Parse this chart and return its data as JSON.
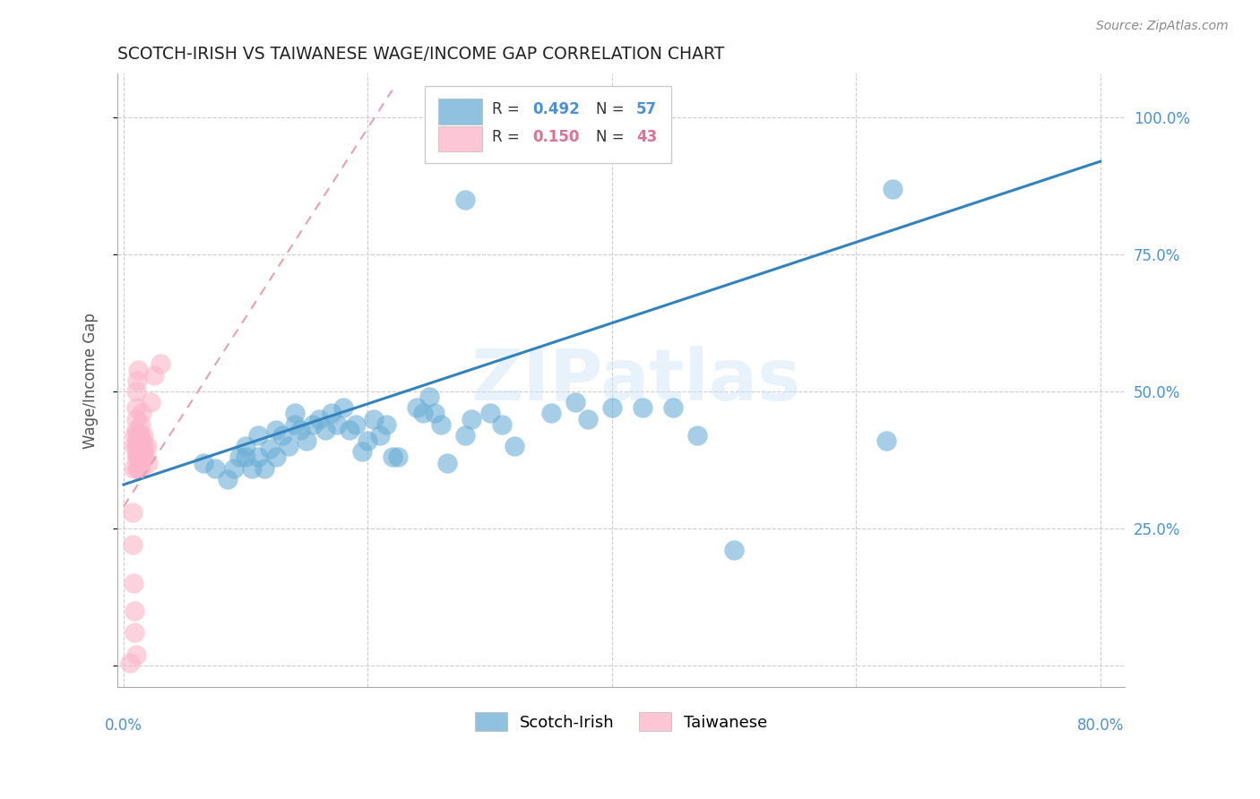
{
  "title": "SCOTCH-IRISH VS TAIWANESE WAGE/INCOME GAP CORRELATION CHART",
  "source": "Source: ZipAtlas.com",
  "ylabel": "Wage/Income Gap",
  "watermark": "ZIPatlas",
  "legend_label_blue": "Scotch-Irish",
  "legend_label_pink": "Taiwanese",
  "blue_R": "0.492",
  "blue_N": "57",
  "pink_R": "0.150",
  "pink_N": "43",
  "blue_color": "#6baed6",
  "pink_color": "#fbb4c9",
  "blue_line_color": "#3182bd",
  "pink_line_color": "#e8a0b0",
  "xlim_min": -0.005,
  "xlim_max": 0.82,
  "ylim_min": -0.04,
  "ylim_max": 1.08,
  "blue_line_x0": 0.0,
  "blue_line_y0": 0.33,
  "blue_line_x1": 0.8,
  "blue_line_y1": 0.92,
  "pink_line_x0": 0.0,
  "pink_line_y0": 0.29,
  "pink_line_x1": 0.22,
  "pink_line_y1": 1.05,
  "blue_x": [
    0.065,
    0.075,
    0.085,
    0.09,
    0.095,
    0.1,
    0.1,
    0.105,
    0.11,
    0.11,
    0.115,
    0.12,
    0.125,
    0.125,
    0.13,
    0.135,
    0.14,
    0.14,
    0.145,
    0.15,
    0.155,
    0.16,
    0.165,
    0.17,
    0.175,
    0.18,
    0.185,
    0.19,
    0.195,
    0.2,
    0.205,
    0.21,
    0.215,
    0.22,
    0.225,
    0.24,
    0.245,
    0.25,
    0.255,
    0.26,
    0.265,
    0.28,
    0.285,
    0.3,
    0.31,
    0.32,
    0.35,
    0.37,
    0.38,
    0.4,
    0.425,
    0.45,
    0.47,
    0.5,
    0.625,
    0.28,
    0.63
  ],
  "blue_y": [
    0.37,
    0.36,
    0.34,
    0.36,
    0.38,
    0.38,
    0.4,
    0.36,
    0.38,
    0.42,
    0.36,
    0.395,
    0.38,
    0.43,
    0.42,
    0.4,
    0.44,
    0.46,
    0.43,
    0.41,
    0.44,
    0.45,
    0.43,
    0.46,
    0.44,
    0.47,
    0.43,
    0.44,
    0.39,
    0.41,
    0.45,
    0.42,
    0.44,
    0.38,
    0.38,
    0.47,
    0.46,
    0.49,
    0.46,
    0.44,
    0.37,
    0.42,
    0.45,
    0.46,
    0.44,
    0.4,
    0.46,
    0.48,
    0.45,
    0.47,
    0.47,
    0.47,
    0.42,
    0.21,
    0.41,
    0.85,
    0.87
  ],
  "pink_x": [
    0.008,
    0.008,
    0.009,
    0.01,
    0.01,
    0.01,
    0.01,
    0.01,
    0.011,
    0.011,
    0.011,
    0.011,
    0.012,
    0.012,
    0.012,
    0.013,
    0.013,
    0.013,
    0.014,
    0.014,
    0.014,
    0.015,
    0.015,
    0.015,
    0.016,
    0.016,
    0.017,
    0.018,
    0.019,
    0.02,
    0.022,
    0.025,
    0.03,
    0.007,
    0.007,
    0.008,
    0.009,
    0.009,
    0.01,
    0.01,
    0.011,
    0.012,
    0.005
  ],
  "pink_y": [
    0.36,
    0.4,
    0.42,
    0.38,
    0.4,
    0.43,
    0.45,
    0.47,
    0.36,
    0.38,
    0.4,
    0.42,
    0.36,
    0.385,
    0.41,
    0.36,
    0.38,
    0.42,
    0.365,
    0.39,
    0.44,
    0.38,
    0.41,
    0.46,
    0.39,
    0.42,
    0.4,
    0.38,
    0.4,
    0.37,
    0.48,
    0.53,
    0.55,
    0.28,
    0.22,
    0.15,
    0.1,
    0.06,
    0.02,
    0.5,
    0.52,
    0.54,
    0.005
  ]
}
